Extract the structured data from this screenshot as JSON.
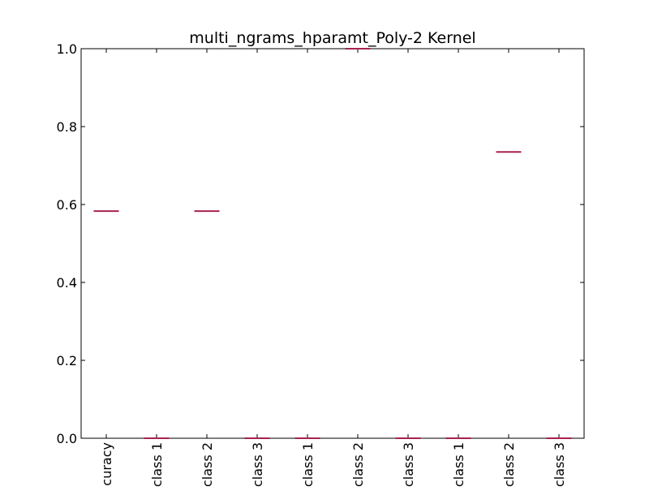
{
  "chart_data": {
    "type": "box",
    "title": "multi_ngrams_hparamt_Poly-2 Kernel",
    "xlabel": "",
    "ylabel": "",
    "categories": [
      "curacy",
      "class 1",
      "class 2",
      "class 3",
      "class 1",
      "class 2",
      "class 3",
      "class 1",
      "class 2",
      "class 3"
    ],
    "values": [
      0.583,
      0.0,
      0.583,
      0.0,
      0.0,
      1.0,
      0.0,
      0.0,
      0.735,
      0.0
    ],
    "ylim": [
      0.0,
      1.0
    ],
    "yticks": [
      "0.0",
      "0.2",
      "0.4",
      "0.6",
      "0.8",
      "1.0"
    ],
    "grid": false,
    "colors": {
      "median": "#a8224f",
      "whisker": "#3a4fa0",
      "axes": "#000000"
    }
  }
}
